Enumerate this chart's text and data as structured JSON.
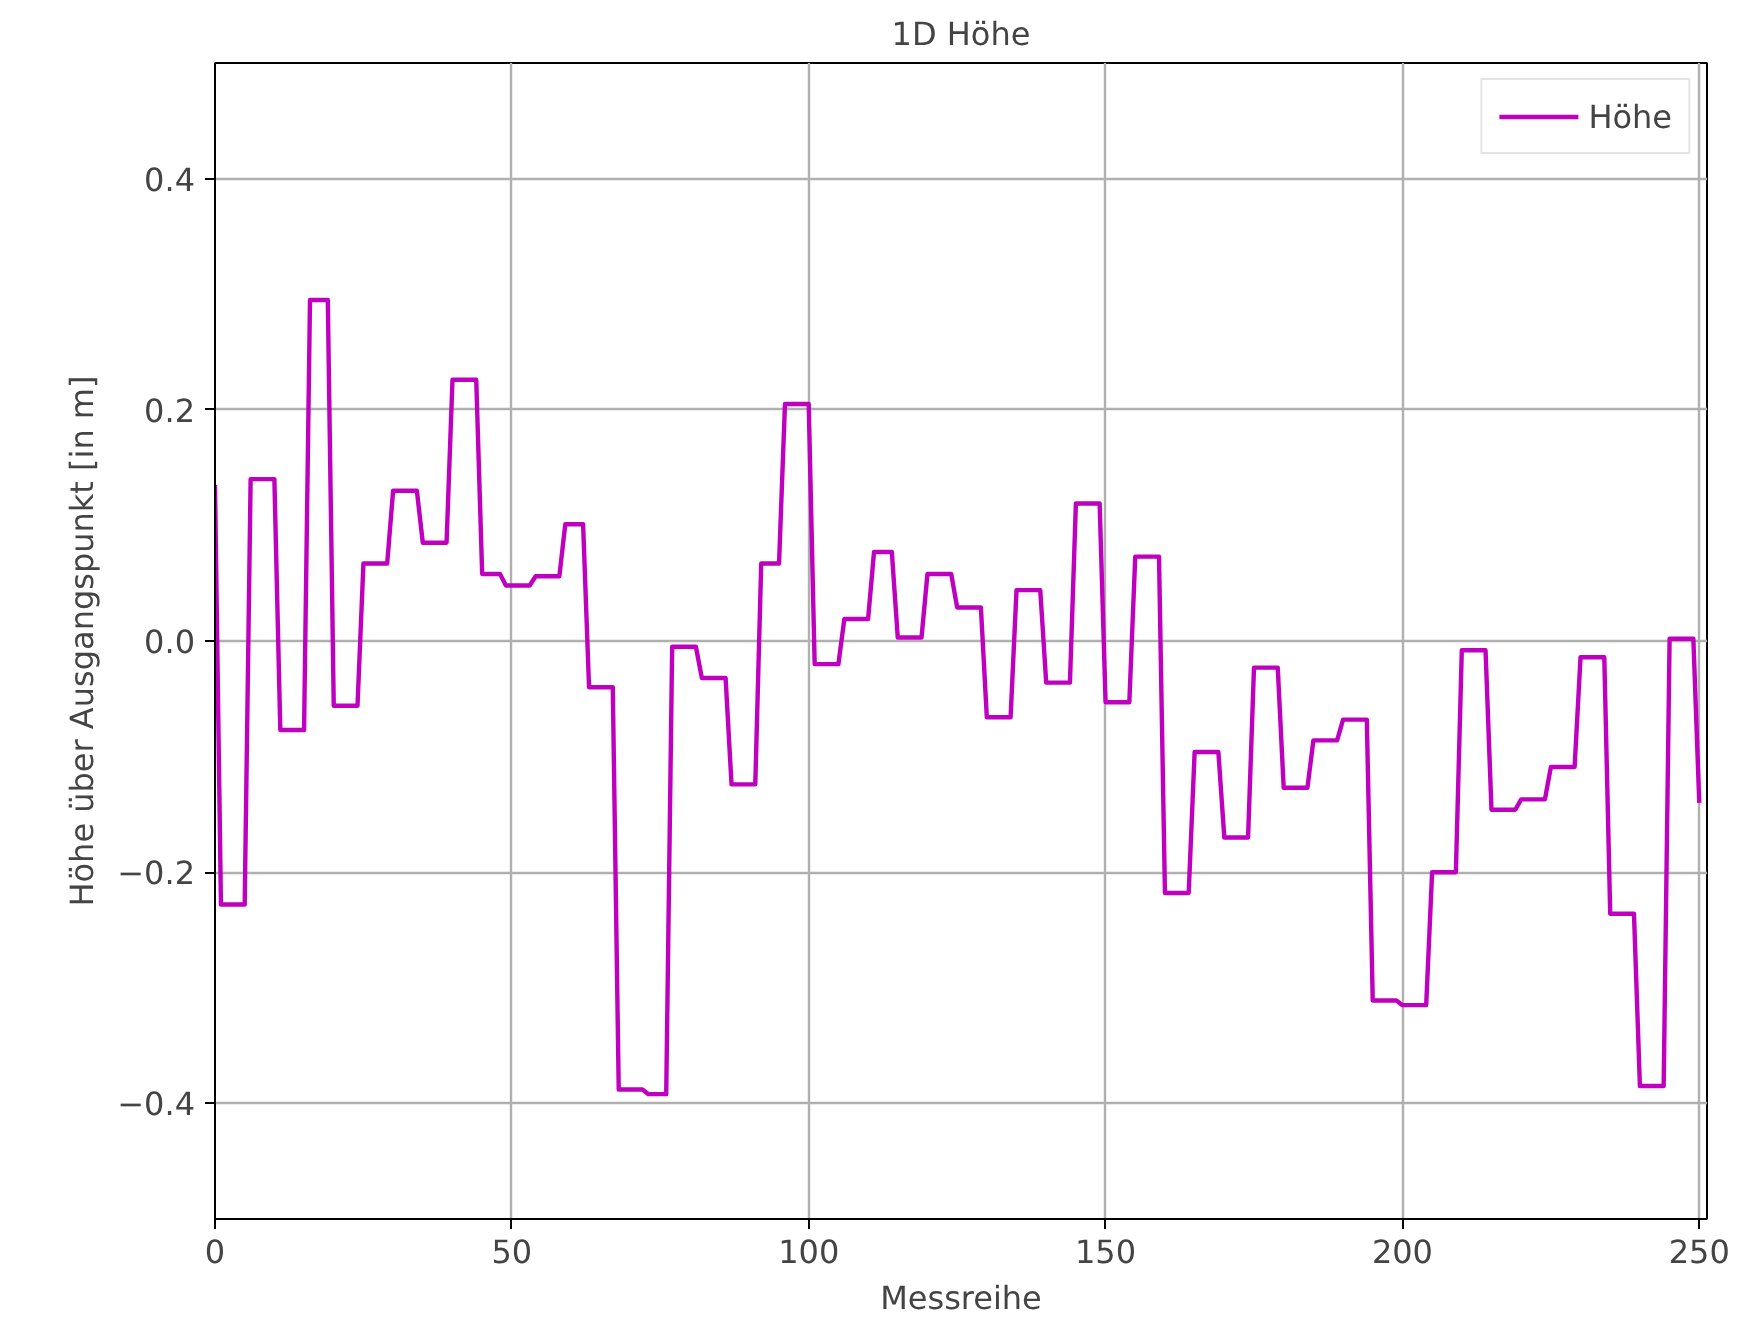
{
  "chart_data": {
    "type": "line",
    "title": "1D Höhe",
    "xlabel": "Messreihe",
    "ylabel": "Höhe über Ausgangspunkt [in m]",
    "xlim": [
      0,
      251.3
    ],
    "ylim": [
      -0.5,
      0.5
    ],
    "xticks": [
      0,
      50,
      100,
      150,
      200,
      250
    ],
    "yticks": [
      {
        "value": -0.4,
        "label": "−0.4"
      },
      {
        "value": -0.2,
        "label": "−0.2"
      },
      {
        "value": 0,
        "label": "0.0"
      },
      {
        "value": 0.2,
        "label": "0.2"
      },
      {
        "value": 0.4,
        "label": "0.4"
      }
    ],
    "grid": true,
    "legend": "top right",
    "marker": "none",
    "line_style": "solid",
    "series": [
      {
        "name": "Höhe",
        "color": "#bf00bf",
        "x": [
          0,
          1,
          5,
          6,
          10,
          11,
          15,
          16,
          19,
          20,
          24,
          25,
          29,
          30,
          34,
          35,
          39,
          40,
          44,
          45,
          48,
          49,
          53,
          54,
          58,
          59,
          62,
          63,
          67,
          68,
          72,
          73,
          76,
          77,
          81,
          82,
          86,
          87,
          91,
          92,
          95,
          96,
          100,
          101,
          105,
          106,
          110,
          111,
          114,
          115,
          119,
          120,
          124,
          125,
          129,
          130,
          134,
          135,
          139,
          140,
          144,
          145,
          149,
          150,
          154,
          155,
          159,
          160,
          164,
          165,
          169,
          170,
          174,
          175,
          179,
          180,
          184,
          185,
          189,
          190,
          194,
          195,
          199,
          200,
          204,
          205,
          209,
          210,
          214,
          215,
          219,
          220,
          224,
          225,
          229,
          230,
          234,
          235,
          239,
          240,
          244,
          245,
          249,
          250
        ],
        "values": [
          0.135,
          -0.228,
          -0.228,
          0.14,
          0.14,
          -0.077,
          -0.077,
          0.295,
          0.295,
          -0.056,
          -0.056,
          0.067,
          0.067,
          0.13,
          0.13,
          0.085,
          0.085,
          0.226,
          0.226,
          0.058,
          0.058,
          0.048,
          0.048,
          0.056,
          0.056,
          0.101,
          0.101,
          -0.04,
          -0.04,
          -0.388,
          -0.388,
          -0.392,
          -0.392,
          -0.005,
          -0.005,
          -0.032,
          -0.032,
          -0.124,
          -0.124,
          0.067,
          0.067,
          0.205,
          0.205,
          -0.02,
          -0.02,
          0.019,
          0.019,
          0.077,
          0.077,
          0.003,
          0.003,
          0.058,
          0.058,
          0.029,
          0.029,
          -0.066,
          -0.066,
          0.044,
          0.044,
          -0.036,
          -0.036,
          0.119,
          0.119,
          -0.053,
          -0.053,
          0.073,
          0.073,
          -0.218,
          -0.218,
          -0.096,
          -0.096,
          -0.17,
          -0.17,
          -0.023,
          -0.023,
          -0.127,
          -0.127,
          -0.086,
          -0.086,
          -0.068,
          -0.068,
          -0.311,
          -0.311,
          -0.315,
          -0.315,
          -0.2,
          -0.2,
          -0.008,
          -0.008,
          -0.146,
          -0.146,
          -0.137,
          -0.137,
          -0.109,
          -0.109,
          -0.014,
          -0.014,
          -0.236,
          -0.236,
          -0.385,
          -0.385,
          0.002,
          0.002,
          -0.14
        ]
      }
    ]
  }
}
